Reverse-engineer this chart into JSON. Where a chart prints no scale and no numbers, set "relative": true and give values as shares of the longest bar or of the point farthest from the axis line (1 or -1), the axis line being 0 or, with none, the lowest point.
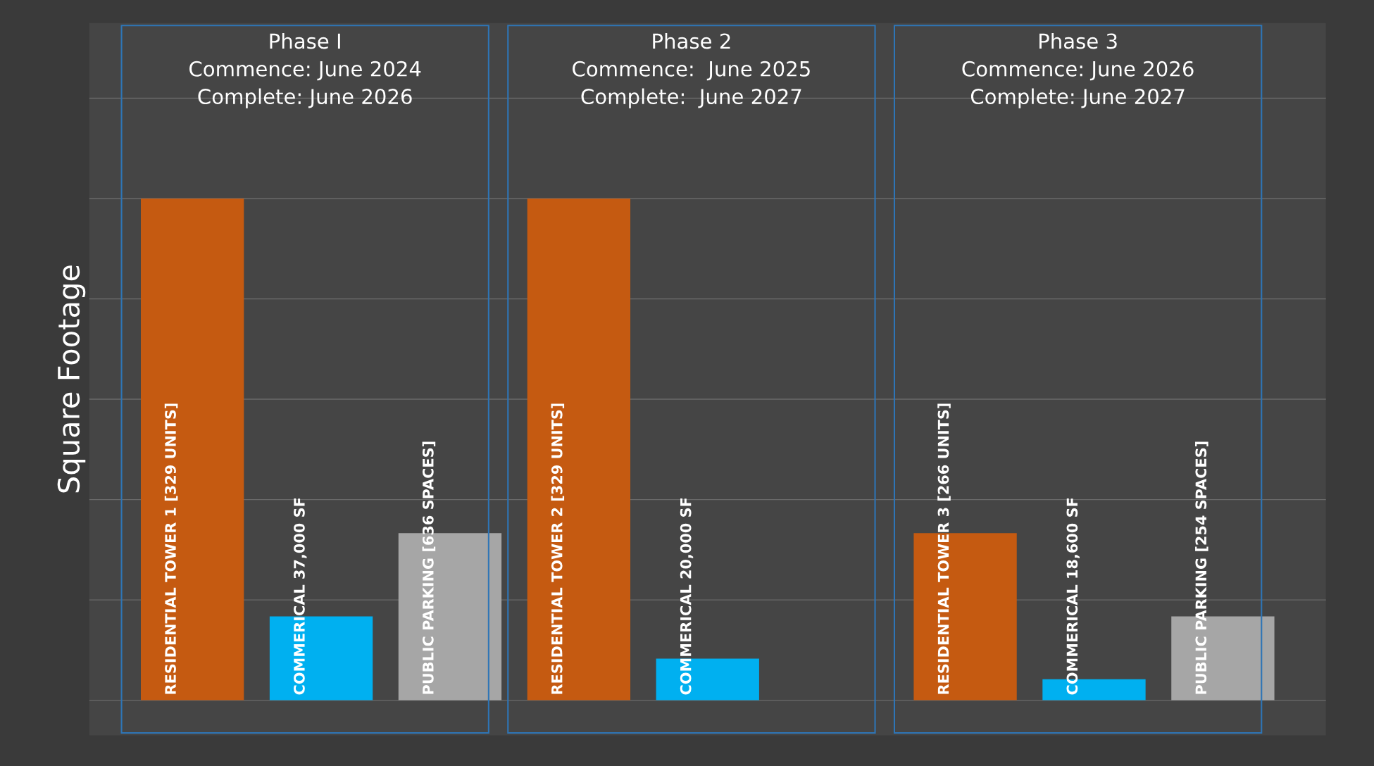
{
  "chart_data": {
    "type": "bar",
    "ylabel": "Square Footage",
    "relative": true,
    "grid": "y",
    "categories": [
      "RESIDENTIAL TOWER 1 [329 UNITS]",
      "COMMERICAL 37,000 SF",
      "PUBLIC PARKING [636 SPACES]",
      "RESIDENTIAL TOWER 2 [329 UNITS]",
      "COMMERICAL 20,000 SF",
      null,
      "RESIDENTIAL TOWER 3 [266 UNITS]",
      "COMMERICAL 18,600 SF",
      "PUBLIC PARKING [254 SPACES]"
    ],
    "values": [
      1,
      0.167,
      0.333,
      1,
      0.083,
      null,
      0.333,
      0.042,
      0.167
    ],
    "colors": [
      "#c55a11",
      "#00b0f0",
      "#a6a6a6",
      "#c55a11",
      "#00b0f0",
      null,
      "#c55a11",
      "#00b0f0",
      "#a6a6a6"
    ],
    "annotations": [
      "Phase I\nCommence: June 2024\nComplete: June 2026",
      "Phase 2\nCommence:  June 2025\nComplete:  June 2027",
      "Phase 3\nCommence: June 2026\nComplete: June 2027"
    ]
  }
}
